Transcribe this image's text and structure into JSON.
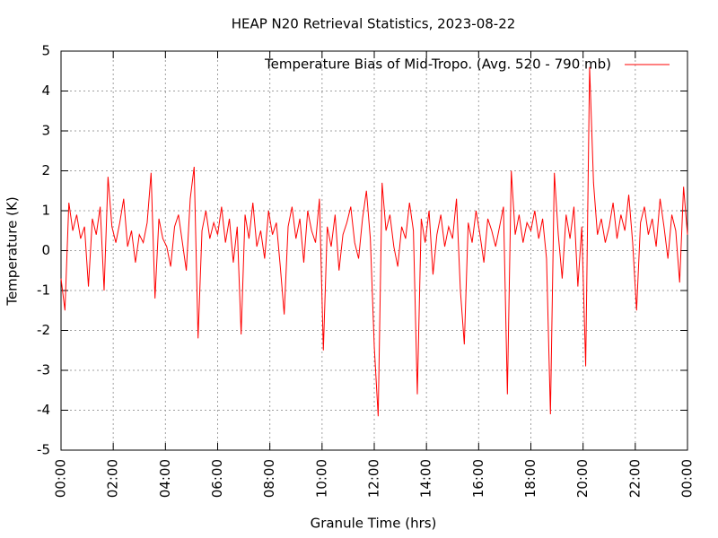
{
  "chart_data": {
    "type": "line",
    "title": "HEAP N20 Retrieval Statistics, 2023-08-22",
    "xlabel": "Granule Time (hrs)",
    "ylabel": "Temperature (K)",
    "xlim": [
      0,
      24
    ],
    "ylim": [
      -5,
      5
    ],
    "xticks": [
      {
        "value": 0,
        "label": "00:00"
      },
      {
        "value": 2,
        "label": "02:00"
      },
      {
        "value": 4,
        "label": "04:00"
      },
      {
        "value": 6,
        "label": "06:00"
      },
      {
        "value": 8,
        "label": "08:00"
      },
      {
        "value": 10,
        "label": "10:00"
      },
      {
        "value": 12,
        "label": "12:00"
      },
      {
        "value": 14,
        "label": "14:00"
      },
      {
        "value": 16,
        "label": "16:00"
      },
      {
        "value": 18,
        "label": "18:00"
      },
      {
        "value": 20,
        "label": "20:00"
      },
      {
        "value": 22,
        "label": "22:00"
      },
      {
        "value": 24,
        "label": "00:00"
      }
    ],
    "yticks": [
      -5,
      -4,
      -3,
      -2,
      -1,
      0,
      1,
      2,
      3,
      4,
      5
    ],
    "grid": true,
    "legend": "top-right",
    "x": [
      0,
      0.15,
      0.3,
      0.45,
      0.6,
      0.75,
      0.9,
      1.05,
      1.2,
      1.35,
      1.5,
      1.65,
      1.8,
      1.95,
      2.1,
      2.25,
      2.4,
      2.55,
      2.7,
      2.85,
      3,
      3.15,
      3.3,
      3.45,
      3.6,
      3.75,
      3.9,
      4.05,
      4.2,
      4.35,
      4.5,
      4.65,
      4.8,
      4.95,
      5.1,
      5.25,
      5.4,
      5.55,
      5.7,
      5.85,
      6,
      6.15,
      6.3,
      6.45,
      6.6,
      6.75,
      6.9,
      7.05,
      7.2,
      7.35,
      7.5,
      7.65,
      7.8,
      7.95,
      8.1,
      8.25,
      8.4,
      8.55,
      8.7,
      8.85,
      9,
      9.15,
      9.3,
      9.45,
      9.6,
      9.75,
      9.9,
      10.05,
      10.2,
      10.35,
      10.5,
      10.65,
      10.8,
      10.95,
      11.1,
      11.25,
      11.4,
      11.55,
      11.7,
      11.85,
      12,
      12.15,
      12.3,
      12.45,
      12.6,
      12.75,
      12.9,
      13.05,
      13.2,
      13.35,
      13.5,
      13.65,
      13.8,
      13.95,
      14.1,
      14.25,
      14.4,
      14.55,
      14.7,
      14.85,
      15,
      15.15,
      15.3,
      15.45,
      15.6,
      15.75,
      15.9,
      16.05,
      16.2,
      16.35,
      16.5,
      16.65,
      16.8,
      16.95,
      17.1,
      17.25,
      17.4,
      17.55,
      17.7,
      17.85,
      18,
      18.15,
      18.3,
      18.45,
      18.6,
      18.75,
      18.9,
      19.05,
      19.2,
      19.35,
      19.5,
      19.65,
      19.8,
      19.95,
      20.1,
      20.25,
      20.4,
      20.55,
      20.7,
      20.85,
      21,
      21.15,
      21.3,
      21.45,
      21.6,
      21.75,
      21.9,
      22.05,
      22.2,
      22.35,
      22.5,
      22.65,
      22.8,
      22.95,
      23.1,
      23.25,
      23.4,
      23.55,
      23.7,
      23.85,
      24
    ],
    "series": [
      {
        "name": "Temperature Bias of Mid-Tropo. (Avg. 520 - 790 mb)",
        "color": "#ff0000",
        "values": [
          -0.7,
          -1.5,
          1.2,
          0.5,
          0.9,
          0.3,
          0.6,
          -0.9,
          0.8,
          0.4,
          1.1,
          -1.0,
          1.85,
          0.6,
          0.2,
          0.7,
          1.3,
          0.1,
          0.5,
          -0.3,
          0.4,
          0.2,
          0.7,
          1.95,
          -1.2,
          0.8,
          0.3,
          0.1,
          -0.4,
          0.6,
          0.9,
          0.2,
          -0.5,
          1.3,
          2.1,
          -2.2,
          0.5,
          1.0,
          0.3,
          0.7,
          0.4,
          1.1,
          0.2,
          0.8,
          -0.3,
          0.6,
          -2.1,
          0.9,
          0.3,
          1.2,
          0.1,
          0.5,
          -0.2,
          1.0,
          0.4,
          0.7,
          -0.4,
          -1.6,
          0.6,
          1.1,
          0.3,
          0.8,
          -0.3,
          1.0,
          0.5,
          0.2,
          1.3,
          -2.5,
          0.6,
          0.1,
          0.9,
          -0.5,
          0.4,
          0.7,
          1.1,
          0.2,
          -0.2,
          0.8,
          1.5,
          0.3,
          -2.4,
          -4.15,
          1.7,
          0.5,
          0.9,
          0.1,
          -0.4,
          0.6,
          0.3,
          1.2,
          0.5,
          -3.6,
          0.8,
          0.2,
          1.0,
          -0.6,
          0.4,
          0.9,
          0.1,
          0.6,
          0.3,
          1.3,
          -1.0,
          -2.35,
          0.7,
          0.2,
          1.0,
          0.4,
          -0.3,
          0.8,
          0.5,
          0.1,
          0.6,
          1.1,
          -3.6,
          2.0,
          0.4,
          0.9,
          0.2,
          0.7,
          0.5,
          1.0,
          0.3,
          0.8,
          -0.2,
          -4.1,
          1.95,
          0.4,
          -0.7,
          0.9,
          0.3,
          1.1,
          -0.9,
          0.6,
          -2.9,
          4.6,
          1.7,
          0.4,
          0.8,
          0.2,
          0.6,
          1.2,
          0.3,
          0.9,
          0.5,
          1.4,
          0.2,
          -1.5,
          0.7,
          1.1,
          0.4,
          0.8,
          0.1,
          1.3,
          0.6,
          -0.2,
          0.9,
          0.5,
          -0.8,
          1.6,
          0.4
        ]
      }
    ]
  }
}
